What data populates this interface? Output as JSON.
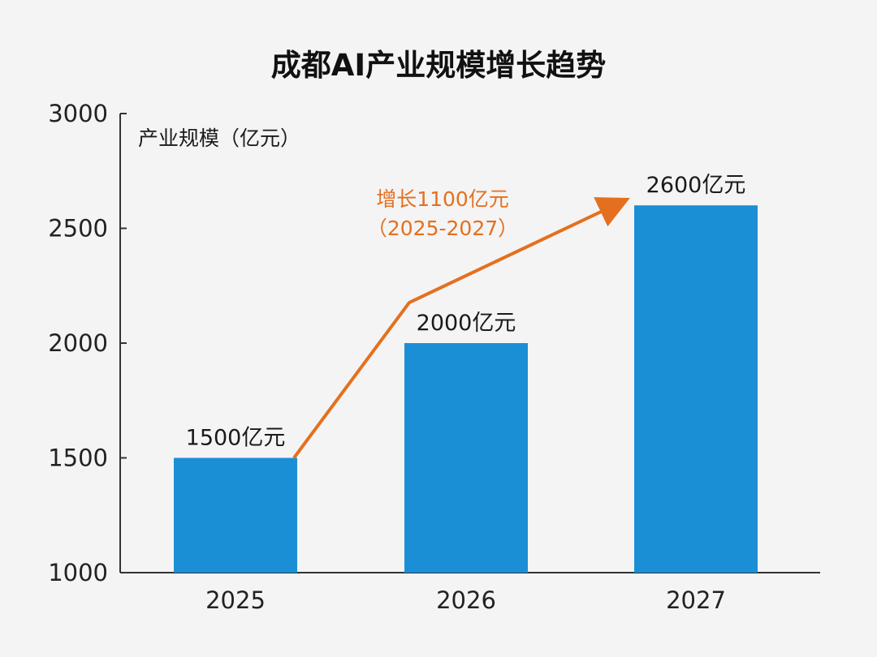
{
  "chart_data": {
    "type": "bar",
    "title": "成都AI产业规模增长趋势",
    "ylabel": "产业规模（亿元）",
    "xlabel": "",
    "categories": [
      "2025",
      "2026",
      "2027"
    ],
    "values": [
      1500,
      2000,
      2600
    ],
    "value_labels": [
      "1500亿元",
      "2000亿元",
      "2600亿元"
    ],
    "ylim": [
      1000,
      3000
    ],
    "yticks": [
      1000,
      1500,
      2000,
      2500,
      3000
    ],
    "ytick_labels": [
      "1000",
      "1500",
      "2000",
      "2500",
      "3000"
    ],
    "grid": false,
    "legend": "none",
    "bar_color": "#1b8fd6",
    "annotation": {
      "lines": [
        "增长1100亿元",
        "（2025-2027）"
      ],
      "color": "#e4701f",
      "arrow_from": "2025",
      "arrow_via": "2026",
      "arrow_to": "2027"
    }
  }
}
